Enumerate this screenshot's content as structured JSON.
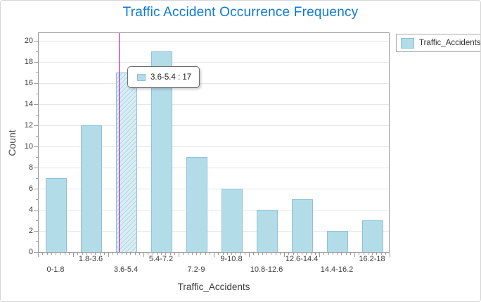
{
  "title": "Traffic Accident Occurrence Frequency",
  "chart_data": {
    "type": "bar",
    "subtype": "histogram",
    "title": "Traffic Accident Occurrence Frequency",
    "categories": [
      "0-1.8",
      "1.8-3.6",
      "3.6-5.4",
      "5.4-7.2",
      "7.2-9",
      "9-10.8",
      "10.8-12.6",
      "12.6-14.4",
      "14.4-16.2",
      "16.2-18"
    ],
    "values": [
      7,
      12,
      17,
      19,
      9,
      6,
      4,
      5,
      2,
      3
    ],
    "series_name": "Traffic_Accidents",
    "xlabel": "Traffic_Accidents",
    "ylabel": "Count",
    "ylim": [
      0,
      20.8
    ],
    "y_ticks": [
      0,
      2,
      4,
      6,
      8,
      10,
      12,
      14,
      16,
      18,
      20
    ],
    "grid": "horizontal",
    "legend_position": "top-right",
    "highlighted_index": 2,
    "highlighted_bin": "3.6-5.4",
    "crosshair": true
  },
  "legend": {
    "items": [
      {
        "label": "Traffic_Accidents"
      }
    ]
  },
  "tooltip": {
    "bin": "3.6-5.4",
    "count": 17,
    "text": "3.6-5.4 : 17"
  },
  "colors": {
    "title": "#0b7ad6",
    "bar_fill": "#b3dce9",
    "bar_border": "#8fc2d5",
    "hatch_bg": "#dceef5",
    "hatch_stripe": "#abd5e4",
    "crosshair": "#cc00cc",
    "gridline": "#e6e6e6",
    "axis": "#9c9c9c",
    "text": "#3b3b3b"
  }
}
